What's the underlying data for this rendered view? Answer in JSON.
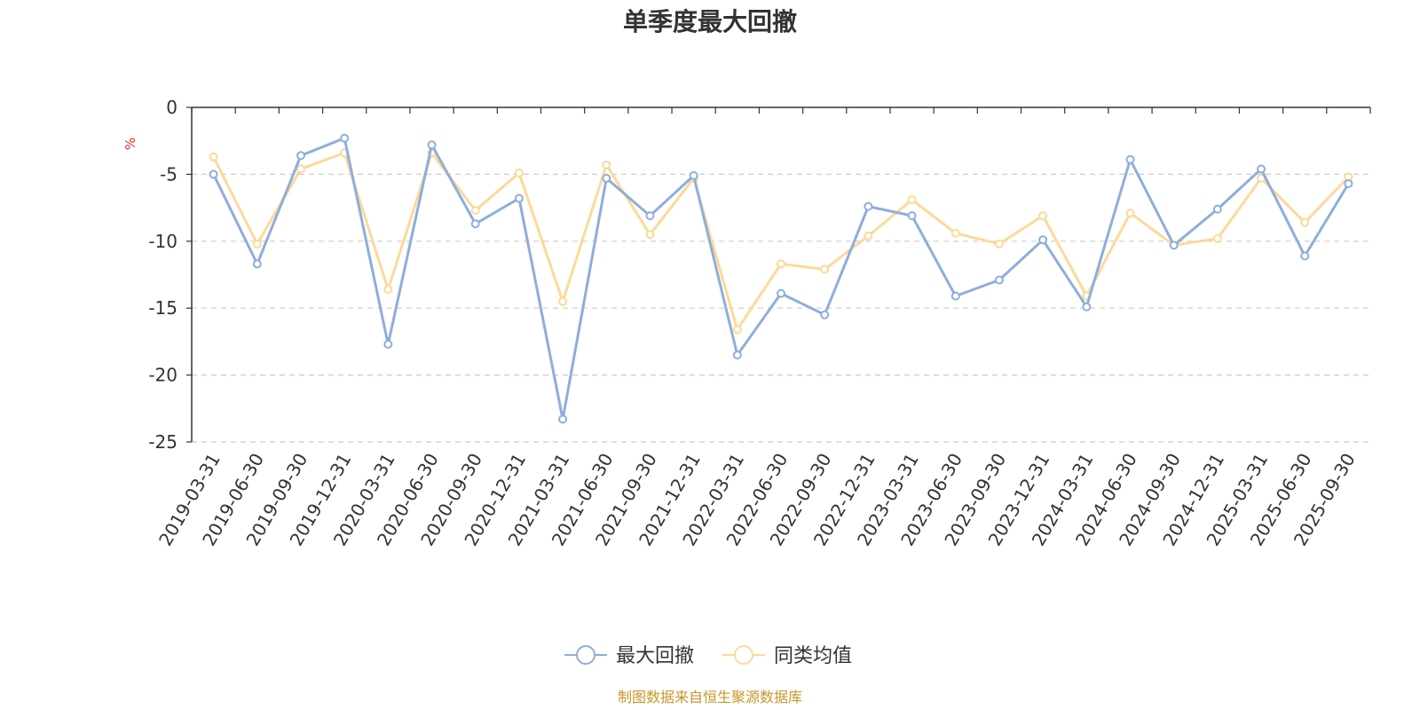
{
  "chart_data": {
    "type": "line",
    "title": "单季度最大回撤",
    "ylabel": "%",
    "ylim": [
      -25,
      0
    ],
    "yticks": [
      0,
      -5,
      -10,
      -15,
      -20,
      -25
    ],
    "ytick_labels": [
      "0",
      "-5",
      "-10",
      "-15",
      "-20",
      "-25"
    ],
    "categories": [
      "2019-03-31",
      "2019-06-30",
      "2019-09-30",
      "2019-12-31",
      "2020-03-31",
      "2020-06-30",
      "2020-09-30",
      "2020-12-31",
      "2021-03-31",
      "2021-06-30",
      "2021-09-30",
      "2021-12-31",
      "2022-03-31",
      "2022-06-30",
      "2022-09-30",
      "2022-12-31",
      "2023-03-31",
      "2023-06-30",
      "2023-09-30",
      "2023-12-31",
      "2024-03-31",
      "2024-06-30",
      "2024-09-30",
      "2024-12-31",
      "2025-03-31",
      "2025-06-30",
      "2025-09-30"
    ],
    "series": [
      {
        "name": "最大回撤",
        "color": "#8eaedb",
        "values": [
          -5.0,
          -11.7,
          -3.6,
          -2.3,
          -17.7,
          -2.8,
          -8.7,
          -6.8,
          -23.3,
          -5.3,
          -8.1,
          -5.1,
          -18.5,
          -13.9,
          -15.5,
          -7.4,
          -8.1,
          -14.1,
          -12.9,
          -9.9,
          -14.9,
          -3.9,
          -10.3,
          -7.6,
          -4.6,
          -11.1,
          -5.7
        ]
      },
      {
        "name": "同类均值",
        "color": "#fdd999",
        "values": [
          -3.7,
          -10.2,
          -4.6,
          -3.4,
          -13.6,
          -3.4,
          -7.7,
          -4.9,
          -14.5,
          -4.3,
          -9.5,
          -5.3,
          -16.6,
          -11.7,
          -12.1,
          -9.6,
          -6.9,
          -9.4,
          -10.2,
          -8.1,
          -14.1,
          -7.9,
          -10.3,
          -9.8,
          -5.3,
          -8.6,
          -5.2
        ]
      }
    ],
    "grid": "horizontal-dashed",
    "legend_position": "bottom-center",
    "source": "制图数据来自恒生聚源数据库"
  }
}
